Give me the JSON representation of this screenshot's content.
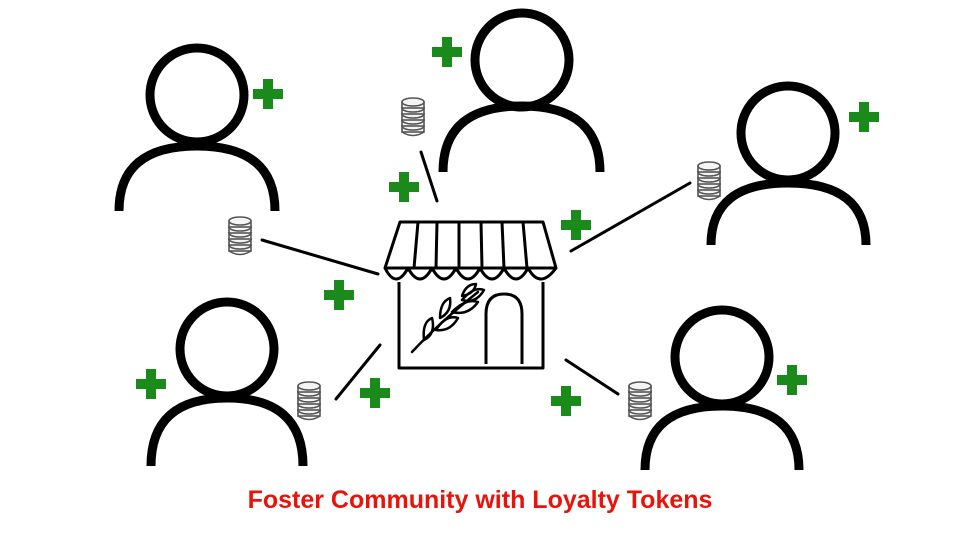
{
  "caption": "Foster Community with Loyalty Tokens",
  "colors": {
    "caption": "#e8140c",
    "plus": "#1a8a1a",
    "line": "#000000",
    "coin_stroke": "#555555",
    "coin_fill": "#f4f4f4",
    "background": "#ffffff"
  },
  "icons": {
    "person": "person-icon",
    "store": "storefront-icon",
    "plus": "plus-icon",
    "token": "coin-stack-icon",
    "plant": "leaf-sprig-icon"
  },
  "members": [
    {
      "id": "member-top-left"
    },
    {
      "id": "member-top-center"
    },
    {
      "id": "member-right"
    },
    {
      "id": "member-bottom-left"
    },
    {
      "id": "member-bottom-right"
    }
  ]
}
